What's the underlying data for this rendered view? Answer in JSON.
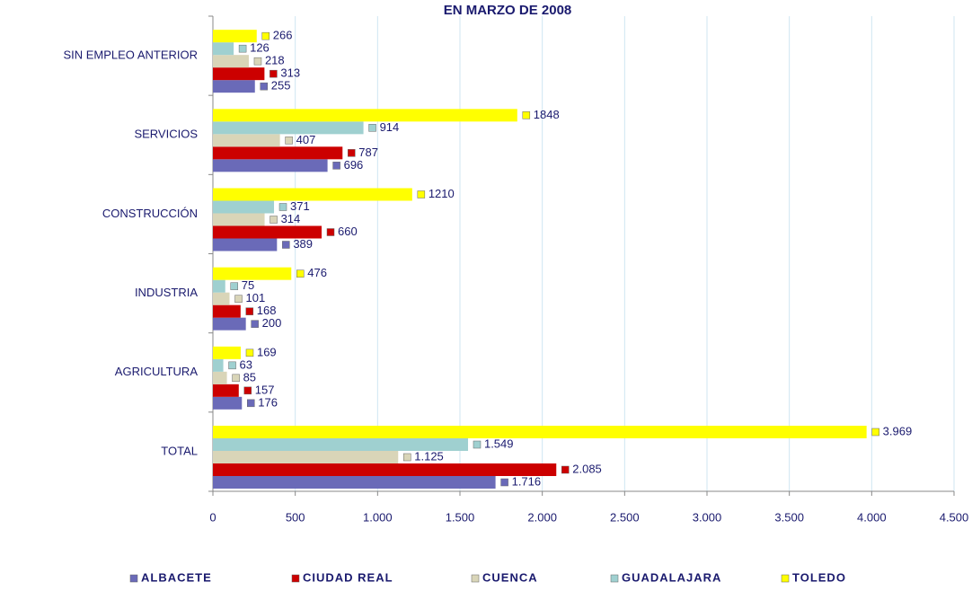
{
  "chart_data": {
    "type": "bar",
    "orientation": "horizontal",
    "title": "EN MARZO DE 2008",
    "categories": [
      "SIN EMPLEO ANTERIOR",
      "SERVICIOS",
      "CONSTRUCCIÓN",
      "INDUSTRIA",
      "AGRICULTURA",
      "TOTAL"
    ],
    "series": [
      {
        "name": "ALBACETE",
        "color": "#6a6ab8",
        "values": [
          255,
          696,
          389,
          200,
          176,
          1716
        ],
        "value_labels": [
          "255",
          "696",
          "389",
          "200",
          "176",
          "1.716"
        ]
      },
      {
        "name": "CIUDAD REAL",
        "color": "#cc0000",
        "values": [
          313,
          787,
          660,
          168,
          157,
          2085
        ],
        "value_labels": [
          "313",
          "787",
          "660",
          "168",
          "157",
          "2.085"
        ]
      },
      {
        "name": "CUENCA",
        "color": "#d9d5b8",
        "values": [
          218,
          407,
          314,
          101,
          85,
          1125
        ],
        "value_labels": [
          "218",
          "407",
          "314",
          "101",
          "85",
          "1.125"
        ]
      },
      {
        "name": "GUADALAJARA",
        "color": "#9fd0d0",
        "values": [
          126,
          914,
          371,
          75,
          63,
          1549
        ],
        "value_labels": [
          "126",
          "914",
          "371",
          "75",
          "63",
          "1.549"
        ]
      },
      {
        "name": "TOLEDO",
        "color": "#ffff00",
        "values": [
          266,
          1848,
          1210,
          476,
          169,
          3969
        ],
        "value_labels": [
          "266",
          "1848",
          "1210",
          "476",
          "169",
          "3.969"
        ]
      }
    ],
    "xlim": [
      0,
      4500
    ],
    "xticks": [
      0,
      500,
      {
        "value": 1000,
        "label": "1.000"
      },
      {
        "value": 1500,
        "label": "1.500"
      },
      {
        "value": 2000,
        "label": "2.000"
      },
      {
        "value": 2500,
        "label": "2.500"
      },
      {
        "value": 3000,
        "label": "3.000"
      },
      {
        "value": 3500,
        "label": "3.500"
      },
      {
        "value": 4000,
        "label": "4.000"
      },
      {
        "value": 4500,
        "label": "4.500"
      }
    ],
    "grid": true,
    "legend": "bottom"
  }
}
